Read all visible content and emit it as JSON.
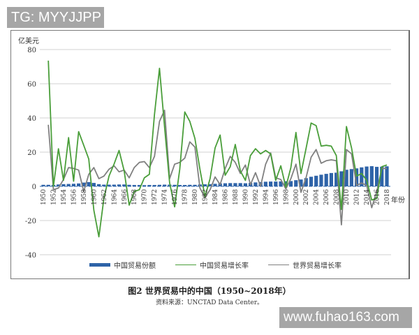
{
  "watermarks": {
    "top": "TG: MYYJJPP",
    "bottom": "www.fuhao163.com"
  },
  "chart_data": {
    "type": "line",
    "title": "图2  世界贸易中的中国（1950~2018年）",
    "source": "资料来源：UNCTAD Data Center。",
    "ylabel": "亿美元",
    "xlabel": "年份",
    "ylim": [
      -40,
      80
    ],
    "yticks": [
      80,
      60,
      40,
      20,
      0,
      -20,
      -40
    ],
    "grid": true,
    "legend_position": "bottom",
    "x": [
      1950,
      1951,
      1952,
      1953,
      1954,
      1955,
      1956,
      1957,
      1958,
      1959,
      1960,
      1961,
      1962,
      1963,
      1964,
      1965,
      1966,
      1967,
      1968,
      1969,
      1970,
      1971,
      1972,
      1973,
      1974,
      1975,
      1976,
      1977,
      1978,
      1979,
      1980,
      1981,
      1982,
      1983,
      1984,
      1985,
      1986,
      1987,
      1988,
      1989,
      1990,
      1991,
      1992,
      1993,
      1994,
      1995,
      1996,
      1997,
      1998,
      1999,
      2000,
      2001,
      2002,
      2003,
      2004,
      2005,
      2006,
      2007,
      2008,
      2009,
      2010,
      2011,
      2012,
      2013,
      2014,
      2015,
      2016,
      2017,
      2018
    ],
    "xtick_labels": [
      "1950",
      "1952",
      "1954",
      "1956",
      "1958",
      "1960",
      "1962",
      "1964",
      "1966",
      "1968",
      "1970",
      "1972",
      "1974",
      "1976",
      "1978",
      "1980",
      "1982",
      "1984",
      "1986",
      "1988",
      "1990",
      "1992",
      "1994",
      "1996",
      "1998",
      "2000",
      "2002",
      "2004",
      "2006",
      "2008",
      "2010",
      "2012",
      "2014",
      "2016",
      "2018"
    ],
    "series": [
      {
        "name": "中国贸易份额",
        "kind": "bar",
        "color": "#2e63a8",
        "values": [
          0.9,
          0.9,
          0.8,
          1.1,
          1.3,
          1.4,
          1.5,
          1.7,
          2.2,
          2.5,
          2.0,
          1.3,
          1.0,
          1.0,
          1.0,
          1.1,
          1.1,
          0.9,
          0.8,
          0.8,
          0.7,
          0.8,
          0.8,
          0.9,
          1.0,
          1.0,
          0.9,
          0.8,
          0.8,
          0.9,
          0.9,
          1.1,
          1.2,
          1.3,
          1.5,
          1.7,
          1.8,
          1.9,
          1.9,
          1.9,
          1.8,
          2.0,
          2.3,
          2.5,
          2.7,
          2.8,
          2.8,
          2.9,
          3.0,
          3.1,
          3.6,
          4.0,
          4.8,
          5.6,
          6.2,
          6.8,
          7.3,
          7.8,
          8.0,
          8.8,
          9.7,
          10.1,
          10.5,
          11.1,
          11.6,
          11.8,
          11.4,
          11.5,
          11.7
        ]
      },
      {
        "name": "中国贸易增长率",
        "kind": "line",
        "color": "#4a9e3a",
        "values": [
          null,
          73.5,
          0.0,
          22.0,
          3.5,
          28.5,
          3.0,
          32.0,
          24.0,
          16.0,
          -14.0,
          -29.5,
          -7.0,
          6.0,
          13.0,
          21.0,
          9.0,
          -11.0,
          -3.0,
          -2.0,
          5.0,
          7.0,
          42.0,
          69.0,
          35.0,
          2.0,
          -12.0,
          10.0,
          43.5,
          38.0,
          28.0,
          10.0,
          -6.0,
          4.5,
          22.5,
          30.0,
          6.5,
          11.5,
          24.5,
          9.0,
          3.5,
          18.0,
          22.0,
          19.0,
          21.0,
          19.0,
          3.5,
          12.0,
          -0.5,
          11.0,
          31.5,
          7.5,
          22.0,
          37.0,
          35.5,
          23.5,
          24.0,
          23.5,
          18.0,
          -13.5,
          35.0,
          22.5,
          6.0,
          7.5,
          3.5,
          -8.0,
          -7.0,
          11.5,
          12.5
        ]
      },
      {
        "name": "世界贸易增长率",
        "kind": "line",
        "color": "#808080",
        "values": [
          null,
          36.0,
          -2.0,
          -1.0,
          4.0,
          11.0,
          10.5,
          9.5,
          -3.0,
          7.0,
          11.0,
          4.5,
          6.0,
          10.0,
          12.0,
          8.5,
          9.5,
          5.0,
          11.0,
          14.0,
          14.5,
          11.0,
          17.5,
          38.0,
          44.5,
          4.5,
          13.0,
          14.0,
          16.5,
          26.0,
          23.0,
          -1.0,
          -6.5,
          -2.0,
          5.5,
          1.0,
          10.5,
          17.5,
          14.0,
          7.5,
          12.5,
          1.0,
          8.0,
          0.0,
          13.0,
          19.5,
          5.0,
          4.0,
          -1.5,
          4.5,
          13.0,
          -3.5,
          5.0,
          17.0,
          21.5,
          13.5,
          15.0,
          15.5,
          15.0,
          -22.5,
          21.5,
          19.0,
          0.5,
          2.0,
          0.5,
          -12.5,
          -3.0,
          10.5,
          10.5
        ]
      }
    ]
  }
}
